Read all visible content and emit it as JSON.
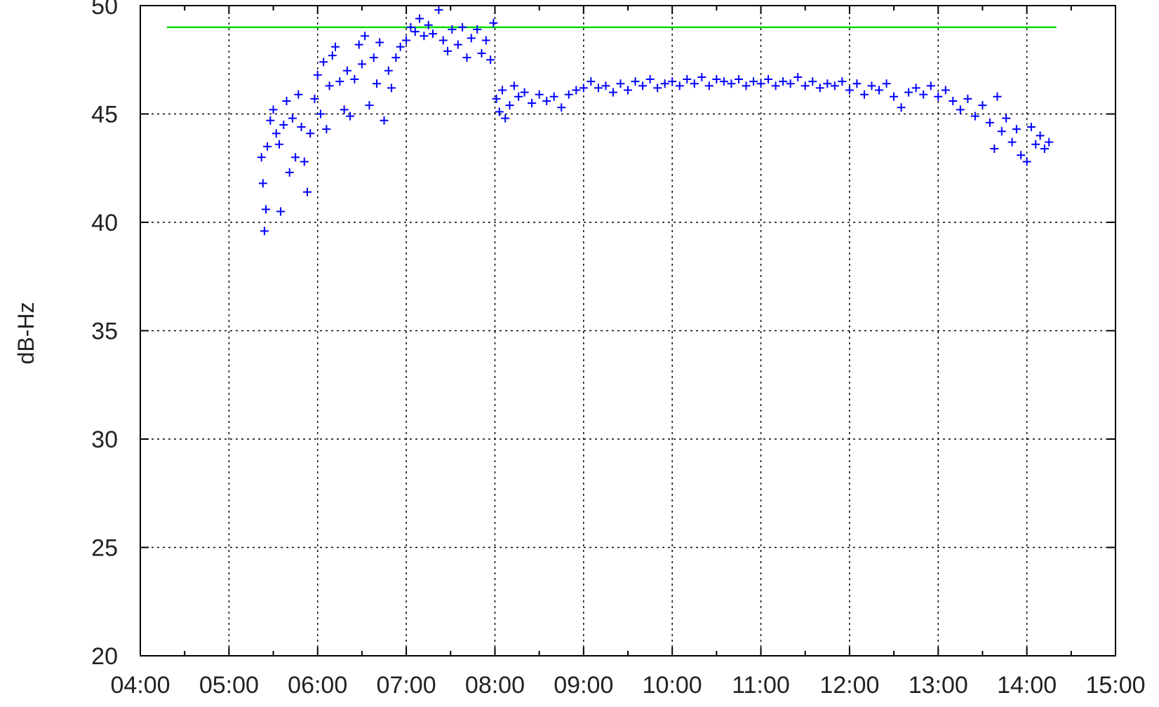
{
  "chart_data": {
    "type": "scatter",
    "title": "",
    "xlabel": "",
    "ylabel": "dB-Hz",
    "xlim": [
      "04:00",
      "15:00"
    ],
    "ylim": [
      20,
      50
    ],
    "x_ticks": [
      "04:00",
      "05:00",
      "06:00",
      "07:00",
      "08:00",
      "09:00",
      "10:00",
      "11:00",
      "12:00",
      "13:00",
      "14:00",
      "15:00"
    ],
    "y_ticks": [
      "20",
      "25",
      "30",
      "35",
      "40",
      "45",
      "50"
    ],
    "grid": true,
    "legend": "none",
    "colors": {
      "points": "#0000ff",
      "reference_line": "#00dd00",
      "grid": "#000000",
      "frame": "#000000"
    },
    "reference_line": {
      "y": 49.0,
      "x_start": "04:18",
      "x_end": "14:20"
    },
    "series": [
      {
        "marker": "plus",
        "points": [
          [
            "05:22",
            43.0
          ],
          [
            "05:23",
            41.8
          ],
          [
            "05:24",
            39.6
          ],
          [
            "05:25",
            40.6
          ],
          [
            "05:26",
            43.5
          ],
          [
            "05:28",
            44.7
          ],
          [
            "05:30",
            45.2
          ],
          [
            "05:32",
            44.1
          ],
          [
            "05:34",
            43.6
          ],
          [
            "05:35",
            40.5
          ],
          [
            "05:37",
            44.5
          ],
          [
            "05:39",
            45.6
          ],
          [
            "05:41",
            42.3
          ],
          [
            "05:43",
            44.8
          ],
          [
            "05:45",
            43.0
          ],
          [
            "05:47",
            45.9
          ],
          [
            "05:49",
            44.4
          ],
          [
            "05:51",
            42.8
          ],
          [
            "05:53",
            41.4
          ],
          [
            "05:55",
            44.1
          ],
          [
            "05:58",
            45.7
          ],
          [
            "06:00",
            46.8
          ],
          [
            "06:02",
            45.0
          ],
          [
            "06:04",
            47.4
          ],
          [
            "06:06",
            44.3
          ],
          [
            "06:08",
            46.3
          ],
          [
            "06:10",
            47.7
          ],
          [
            "06:12",
            48.1
          ],
          [
            "06:15",
            46.5
          ],
          [
            "06:18",
            45.2
          ],
          [
            "06:20",
            47.0
          ],
          [
            "06:22",
            44.9
          ],
          [
            "06:25",
            46.6
          ],
          [
            "06:28",
            48.2
          ],
          [
            "06:30",
            47.3
          ],
          [
            "06:32",
            48.6
          ],
          [
            "06:35",
            45.4
          ],
          [
            "06:38",
            47.6
          ],
          [
            "06:40",
            46.4
          ],
          [
            "06:42",
            48.3
          ],
          [
            "06:45",
            44.7
          ],
          [
            "06:48",
            47.0
          ],
          [
            "06:50",
            46.2
          ],
          [
            "06:53",
            47.6
          ],
          [
            "06:56",
            48.1
          ],
          [
            "07:00",
            48.4
          ],
          [
            "07:03",
            49.0
          ],
          [
            "07:06",
            48.8
          ],
          [
            "07:09",
            49.4
          ],
          [
            "07:12",
            48.6
          ],
          [
            "07:15",
            49.1
          ],
          [
            "07:18",
            48.7
          ],
          [
            "07:22",
            49.8
          ],
          [
            "07:25",
            48.4
          ],
          [
            "07:28",
            47.9
          ],
          [
            "07:31",
            48.9
          ],
          [
            "07:35",
            48.2
          ],
          [
            "07:38",
            49.0
          ],
          [
            "07:41",
            47.6
          ],
          [
            "07:44",
            48.5
          ],
          [
            "07:48",
            48.9
          ],
          [
            "07:51",
            47.8
          ],
          [
            "07:54",
            48.4
          ],
          [
            "07:57",
            47.5
          ],
          [
            "07:59",
            49.2
          ],
          [
            "08:01",
            45.7
          ],
          [
            "08:03",
            45.1
          ],
          [
            "08:05",
            46.1
          ],
          [
            "08:07",
            44.8
          ],
          [
            "08:10",
            45.4
          ],
          [
            "08:13",
            46.3
          ],
          [
            "08:16",
            45.8
          ],
          [
            "08:20",
            46.0
          ],
          [
            "08:25",
            45.5
          ],
          [
            "08:30",
            45.9
          ],
          [
            "08:35",
            45.6
          ],
          [
            "08:40",
            45.8
          ],
          [
            "08:45",
            45.3
          ],
          [
            "08:50",
            45.9
          ],
          [
            "08:55",
            46.1
          ],
          [
            "09:00",
            46.2
          ],
          [
            "09:05",
            46.5
          ],
          [
            "09:10",
            46.2
          ],
          [
            "09:15",
            46.3
          ],
          [
            "09:20",
            46.0
          ],
          [
            "09:25",
            46.4
          ],
          [
            "09:30",
            46.1
          ],
          [
            "09:35",
            46.5
          ],
          [
            "09:40",
            46.3
          ],
          [
            "09:45",
            46.6
          ],
          [
            "09:50",
            46.2
          ],
          [
            "09:55",
            46.4
          ],
          [
            "10:00",
            46.5
          ],
          [
            "10:05",
            46.3
          ],
          [
            "10:10",
            46.6
          ],
          [
            "10:15",
            46.4
          ],
          [
            "10:20",
            46.7
          ],
          [
            "10:25",
            46.3
          ],
          [
            "10:30",
            46.6
          ],
          [
            "10:35",
            46.5
          ],
          [
            "10:40",
            46.4
          ],
          [
            "10:45",
            46.6
          ],
          [
            "10:50",
            46.3
          ],
          [
            "10:55",
            46.5
          ],
          [
            "11:00",
            46.4
          ],
          [
            "11:05",
            46.6
          ],
          [
            "11:10",
            46.3
          ],
          [
            "11:15",
            46.5
          ],
          [
            "11:20",
            46.4
          ],
          [
            "11:25",
            46.7
          ],
          [
            "11:30",
            46.3
          ],
          [
            "11:35",
            46.5
          ],
          [
            "11:40",
            46.2
          ],
          [
            "11:45",
            46.4
          ],
          [
            "11:50",
            46.3
          ],
          [
            "11:55",
            46.5
          ],
          [
            "12:00",
            46.1
          ],
          [
            "12:05",
            46.4
          ],
          [
            "12:10",
            45.9
          ],
          [
            "12:15",
            46.3
          ],
          [
            "12:20",
            46.1
          ],
          [
            "12:25",
            46.4
          ],
          [
            "12:30",
            45.8
          ],
          [
            "12:35",
            45.3
          ],
          [
            "12:40",
            46.0
          ],
          [
            "12:45",
            46.2
          ],
          [
            "12:50",
            45.9
          ],
          [
            "12:55",
            46.3
          ],
          [
            "13:00",
            45.8
          ],
          [
            "13:05",
            46.1
          ],
          [
            "13:10",
            45.6
          ],
          [
            "13:15",
            45.2
          ],
          [
            "13:20",
            45.7
          ],
          [
            "13:25",
            44.9
          ],
          [
            "13:30",
            45.4
          ],
          [
            "13:35",
            44.6
          ],
          [
            "13:38",
            43.4
          ],
          [
            "13:40",
            45.8
          ],
          [
            "13:43",
            44.2
          ],
          [
            "13:46",
            44.8
          ],
          [
            "13:50",
            43.7
          ],
          [
            "13:53",
            44.3
          ],
          [
            "13:56",
            43.1
          ],
          [
            "14:00",
            42.8
          ],
          [
            "14:03",
            44.4
          ],
          [
            "14:06",
            43.6
          ],
          [
            "14:09",
            44.0
          ],
          [
            "14:12",
            43.4
          ],
          [
            "14:15",
            43.7
          ]
        ]
      }
    ]
  }
}
